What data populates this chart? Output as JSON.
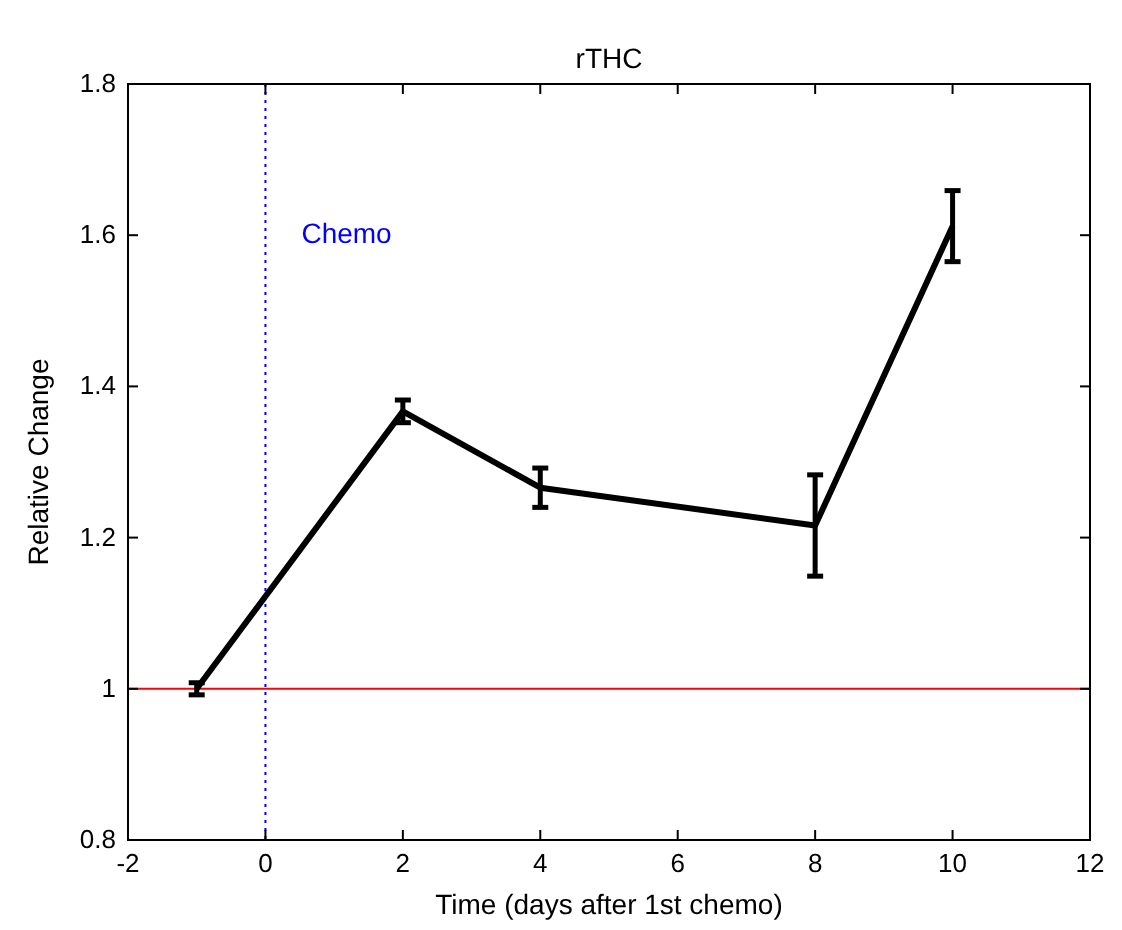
{
  "chart_data": {
    "type": "line",
    "title": "rTHC",
    "xlabel": "Time (days after 1st chemo)",
    "ylabel": "Relative Change",
    "x": [
      -1,
      2,
      4,
      8,
      10
    ],
    "series": [
      {
        "color": "#000000",
        "values": [
          1.0,
          1.367,
          1.266,
          1.216,
          1.612
        ],
        "errors": [
          0.008,
          0.015,
          0.026,
          0.067,
          0.047
        ]
      }
    ],
    "xlim": [
      -2,
      12
    ],
    "xticks": [
      -2,
      0,
      2,
      4,
      6,
      8,
      10,
      12
    ],
    "ylim": [
      0.8,
      1.8
    ],
    "yticks": [
      0.8,
      1,
      1.2,
      1.4,
      1.6,
      1.8
    ],
    "ref_lines": [
      {
        "axis": "x",
        "value": 0,
        "label": "Chemo",
        "color": "#0000ff",
        "line_style": "dotted"
      },
      {
        "axis": "y",
        "value": 1,
        "label": null,
        "color": "#ff0000",
        "line_style": "solid"
      }
    ],
    "grid": false,
    "marker": "none",
    "line_style": "solid"
  }
}
